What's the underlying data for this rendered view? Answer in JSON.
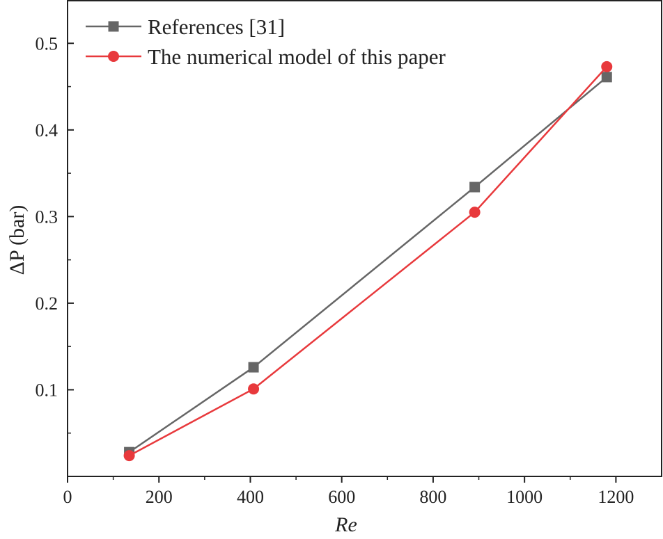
{
  "chart_data": {
    "type": "line",
    "xlabel": "Re",
    "ylabel": "ΔP (bar)",
    "xlim": [
      0,
      1300
    ],
    "ylim": [
      0,
      0.55
    ],
    "x_ticks": [
      0,
      200,
      400,
      600,
      800,
      1000,
      1200
    ],
    "x_tick_labels": [
      "0",
      "200",
      "400",
      "600",
      "800",
      "1000",
      "1200"
    ],
    "y_ticks": [
      0.1,
      0.2,
      0.3,
      0.4,
      0.5
    ],
    "y_tick_labels": [
      "0.1",
      "0.2",
      "0.3",
      "0.4",
      "0.5"
    ],
    "grid": false,
    "legend_position": "top-left",
    "series": [
      {
        "name": "References [31]",
        "marker": "square",
        "color": "#666666",
        "x": [
          135,
          407,
          891,
          1180
        ],
        "y": [
          0.028,
          0.126,
          0.334,
          0.461
        ]
      },
      {
        "name": "The numerical model of this paper",
        "marker": "circle",
        "color": "#e8393c",
        "x": [
          135,
          407,
          891,
          1180
        ],
        "y": [
          0.024,
          0.101,
          0.305,
          0.473
        ]
      }
    ]
  }
}
